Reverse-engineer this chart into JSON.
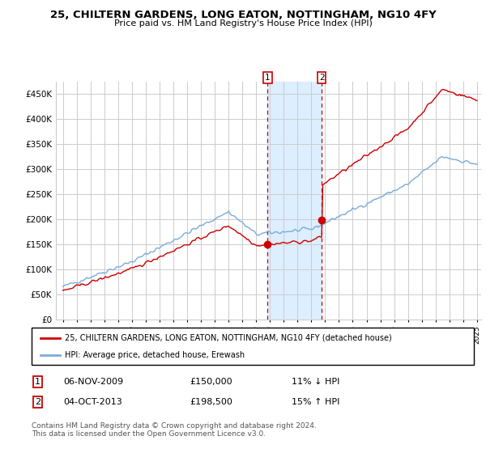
{
  "title": "25, CHILTERN GARDENS, LONG EATON, NOTTINGHAM, NG10 4FY",
  "subtitle": "Price paid vs. HM Land Registry's House Price Index (HPI)",
  "legend_line1": "25, CHILTERN GARDENS, LONG EATON, NOTTINGHAM, NG10 4FY (detached house)",
  "legend_line2": "HPI: Average price, detached house, Erewash",
  "transaction1_date": "06-NOV-2009",
  "transaction1_price": "£150,000",
  "transaction1_hpi": "11% ↓ HPI",
  "transaction2_date": "04-OCT-2013",
  "transaction2_price": "£198,500",
  "transaction2_hpi": "15% ↑ HPI",
  "footer": "Contains HM Land Registry data © Crown copyright and database right 2024.\nThis data is licensed under the Open Government Licence v3.0.",
  "red_color": "#cc0000",
  "blue_color": "#7aacda",
  "shade_color": "#ddeeff",
  "grid_color": "#cccccc",
  "ylim": [
    0,
    475000
  ],
  "yticks": [
    0,
    50000,
    100000,
    150000,
    200000,
    250000,
    300000,
    350000,
    400000,
    450000
  ],
  "t1_year": 2009.833,
  "t2_year": 2013.75,
  "price_t1": 150000,
  "price_t2": 198500
}
